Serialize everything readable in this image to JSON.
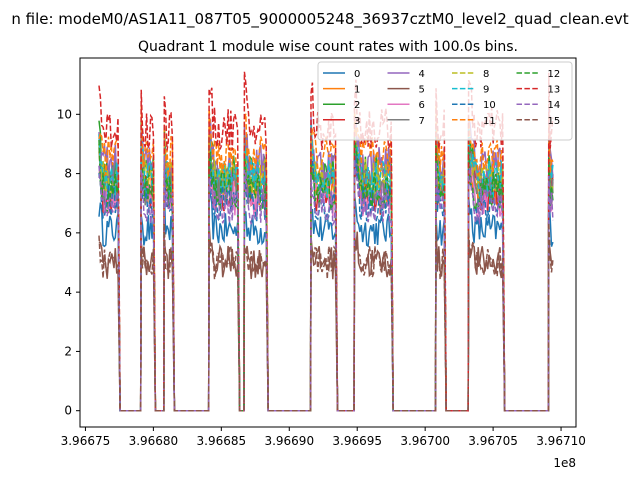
{
  "figure": {
    "suptitle": "n file: modeM0/AS1A11_087T05_9000005248_36937cztM0_level2_quad_clean.evt",
    "offset_text": "1e8"
  },
  "chart_data": {
    "type": "line",
    "title": "Quadrant 1 module wise count rates with 100.0s bins.",
    "xlabel": "",
    "ylabel": "",
    "x_offset": 100000000,
    "xlim": [
      3.966746,
      3.967111
    ],
    "ylim": [
      -0.55,
      11.9
    ],
    "x_ticks": [
      3.96675,
      3.9668,
      3.96685,
      3.9669,
      3.96695,
      3.967,
      3.96705,
      3.9671
    ],
    "x_tick_labels": [
      "3.96675",
      "3.96680",
      "3.96685",
      "3.96690",
      "3.96695",
      "3.96700",
      "3.96705",
      "3.96710"
    ],
    "y_ticks": [
      0,
      2,
      4,
      6,
      8,
      10
    ],
    "y_tick_labels": [
      "0",
      "2",
      "4",
      "6",
      "8",
      "10"
    ],
    "grid": false,
    "legend_position": "top-right",
    "orbit_segments": [
      {
        "on_start": 3.96676,
        "on_end": 3.966774,
        "gap_end": 3.966791
      },
      {
        "on_start": 3.966791,
        "on_end": 3.9668,
        "gap_end": 3.966808
      },
      {
        "on_start": 3.966808,
        "on_end": 3.966814,
        "gap_end": 3.966841
      },
      {
        "on_start": 3.966841,
        "on_end": 3.966862,
        "gap_end": 3.966867
      },
      {
        "on_start": 3.966867,
        "on_end": 3.966883,
        "gap_end": 3.966916
      },
      {
        "on_start": 3.966916,
        "on_end": 3.966934,
        "gap_end": 3.966948
      },
      {
        "on_start": 3.966948,
        "on_end": 3.966975,
        "gap_end": 3.967008
      },
      {
        "on_start": 3.967008,
        "on_end": 3.967014,
        "gap_end": 3.967032
      },
      {
        "on_start": 3.967032,
        "on_end": 3.967057,
        "gap_end": 3.967091
      },
      {
        "on_start": 3.967091,
        "on_end": 3.967094,
        "gap_end": 3.967094
      }
    ],
    "series": [
      {
        "name": "0",
        "color": "#1f77b4",
        "dash": false,
        "level": 6.1,
        "peak": 7.0
      },
      {
        "name": "1",
        "color": "#ff7f0e",
        "dash": false,
        "level": 7.6,
        "peak": 9.0
      },
      {
        "name": "2",
        "color": "#2ca02c",
        "dash": false,
        "level": 8.0,
        "peak": 9.2
      },
      {
        "name": "3",
        "color": "#d62728",
        "dash": false,
        "level": 7.3,
        "peak": 8.6
      },
      {
        "name": "4",
        "color": "#9467bd",
        "dash": false,
        "level": 8.3,
        "peak": 9.6
      },
      {
        "name": "5",
        "color": "#8c564b",
        "dash": false,
        "level": 5.0,
        "peak": 5.9
      },
      {
        "name": "6",
        "color": "#e377c2",
        "dash": false,
        "level": 7.2,
        "peak": 8.4
      },
      {
        "name": "7",
        "color": "#7f7f7f",
        "dash": false,
        "level": 7.6,
        "peak": 8.8
      },
      {
        "name": "8",
        "color": "#bcbd22",
        "dash": true,
        "level": 7.9,
        "peak": 9.0
      },
      {
        "name": "9",
        "color": "#17becf",
        "dash": true,
        "level": 7.8,
        "peak": 9.0
      },
      {
        "name": "10",
        "color": "#1f77b4",
        "dash": true,
        "level": 7.0,
        "peak": 8.2
      },
      {
        "name": "11",
        "color": "#ff7f0e",
        "dash": true,
        "level": 8.6,
        "peak": 9.8
      },
      {
        "name": "12",
        "color": "#2ca02c",
        "dash": true,
        "level": 7.4,
        "peak": 8.6
      },
      {
        "name": "13",
        "color": "#d62728",
        "dash": true,
        "level": 9.5,
        "peak": 10.9
      },
      {
        "name": "14",
        "color": "#9467bd",
        "dash": true,
        "level": 6.9,
        "peak": 8.0
      },
      {
        "name": "15",
        "color": "#8c564b",
        "dash": true,
        "level": 5.0,
        "peak": 5.9
      }
    ]
  }
}
